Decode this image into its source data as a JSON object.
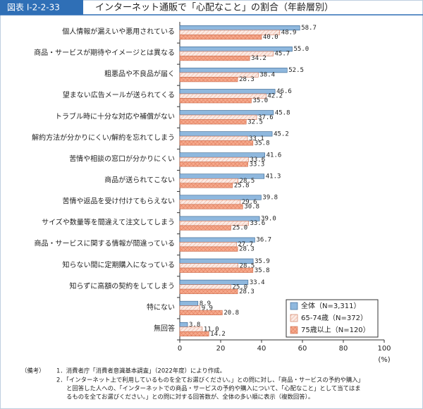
{
  "header": {
    "label": "図表 I-2-2-33"
  },
  "chart_data": {
    "type": "hbar",
    "title": "インターネット通販で「心配なこと」の割合（年齢層別）",
    "unit": "(%)",
    "categories": [
      "個人情報が漏えいや悪用されている",
      "商品・サービスが期待やイメージとは異なる",
      "粗悪品や不良品が届く",
      "望まない広告メールが送られてくる",
      "トラブル時に十分な対応や補償がない",
      "解約方法が分かりにくい/解約を忘れてしまう",
      "苦情や相談の窓口が分かりにくい",
      "商品が送られてこない",
      "苦情や返品を受け付けてもらえない",
      "サイズや数量等を間違えて注文してしまう",
      "商品・サービスに関する情報が間違っている",
      "知らない間に定期購入になっている",
      "知らずに高額の契約をしてしまう",
      "特にない",
      "無回答"
    ],
    "series": [
      {
        "name": "全体（N=3,311）",
        "color": "#8fb8de",
        "values": [
          58.7,
          55.0,
          52.5,
          46.6,
          45.8,
          45.2,
          41.6,
          41.3,
          39.8,
          39.0,
          36.7,
          35.9,
          33.4,
          8.9,
          3.8
        ],
        "value_labels": [
          "58.7",
          "55.0",
          "52.5",
          "46.6",
          "45.8",
          "45.2",
          "41.6",
          "41.3",
          "39.8",
          "39.0",
          "36.7",
          "35.9",
          "33.4",
          "8.9",
          "3.8"
        ]
      },
      {
        "name": "65-74歳（N=372）",
        "color": "#fbeae4",
        "values": [
          48.9,
          45.7,
          38.4,
          42.2,
          37.6,
          33.1,
          33.6,
          28.5,
          29.6,
          33.6,
          27.7,
          28.5,
          25.0,
          9.9,
          11.0
        ],
        "value_labels": [
          "48.9",
          "45.7",
          "38.4",
          "42.2",
          "37.6",
          "33.1",
          "33.6",
          "28.5",
          "29.6",
          "33.6",
          "27.7",
          "28.5",
          "25.0",
          "9.9",
          "11.0"
        ]
      },
      {
        "name": "75歳以上（N=120）",
        "color": "#f6a98c",
        "values": [
          40.0,
          34.2,
          28.3,
          35.0,
          32.5,
          35.8,
          33.3,
          25.8,
          30.8,
          25.0,
          28.3,
          35.8,
          28.3,
          20.8,
          14.2
        ],
        "value_labels": [
          "40.0",
          "34.2",
          "28.3",
          "35.0",
          "32.5",
          "35.8",
          "33.3",
          "25.8",
          "30.8",
          "25.0",
          "28.3",
          "35.8",
          "28.3",
          "20.8",
          "14.2"
        ]
      }
    ],
    "xlim": [
      0,
      100
    ],
    "xticks": [
      0,
      20,
      40,
      60,
      80,
      100
    ],
    "grid": false,
    "legend": "lower-right"
  },
  "notes": {
    "label": "（備考）",
    "lines": [
      "1．消費者庁「消費者意識基本調査」（2022年度）により作成。",
      "2．「インターネット上で利用しているものを全てお選びください。」との問に対し、「商品・サービスの予約や購入」",
      "と回答した人への、「インターネットでの商品・サービスの予約や購入について、「心配なこと」として当てはま",
      "るものを全てお選びください。」との問に対する回答数が、全体の多い順に表示（複数回答）。"
    ]
  }
}
